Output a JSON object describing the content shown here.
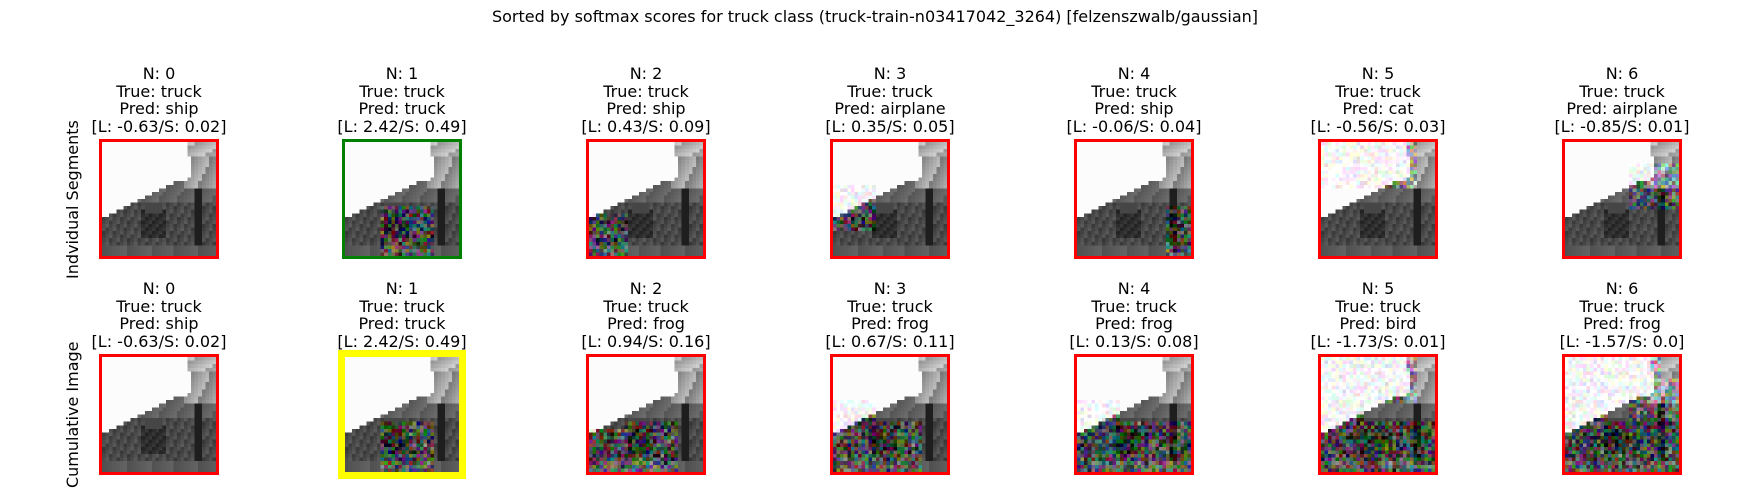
{
  "figure": {
    "suptitle": "Sorted by softmax scores for truck class (truck-train-n03417042_3264) [felzenszwalb/gaussian]",
    "row_labels": {
      "individual": "Indvidual Segments",
      "cumulative": "Cumulative Image"
    },
    "border_colors": {
      "default": "#ff0000",
      "correct": "#008000",
      "best": "#ffff00"
    },
    "rows": [
      {
        "name": "individual-segments",
        "panels": [
          {
            "n": "N: 0",
            "true": "True: truck",
            "pred": "Pred: ship",
            "score": "[L: -0.63/S: 0.02]",
            "border": "default",
            "noise_region": "none"
          },
          {
            "n": "N: 1",
            "true": "True: truck",
            "pred": "Pred: truck",
            "score": "[L: 2.42/S: 0.49]",
            "border": "correct",
            "noise_region": "center-bottom"
          },
          {
            "n": "N: 2",
            "true": "True: truck",
            "pred": "Pred: ship",
            "score": "[L: 0.43/S: 0.09]",
            "border": "default",
            "noise_region": "left-bottom"
          },
          {
            "n": "N: 3",
            "true": "True: truck",
            "pred": "Pred: airplane",
            "score": "[L: 0.35/S: 0.05]",
            "border": "default",
            "noise_region": "left-middle"
          },
          {
            "n": "N: 4",
            "true": "True: truck",
            "pred": "Pred: ship",
            "score": "[L: -0.06/S: 0.04]",
            "border": "default",
            "noise_region": "right-bottom"
          },
          {
            "n": "N: 5",
            "true": "True: truck",
            "pred": "Pred: cat",
            "score": "[L: -0.56/S: 0.03]",
            "border": "default",
            "noise_region": "sky"
          },
          {
            "n": "N: 6",
            "true": "True: truck",
            "pred": "Pred: airplane",
            "score": "[L: -0.85/S: 0.01]",
            "border": "default",
            "noise_region": "right-middle"
          }
        ]
      },
      {
        "name": "cumulative-image",
        "panels": [
          {
            "n": "N: 0",
            "true": "True: truck",
            "pred": "Pred: ship",
            "score": "[L: -0.63/S: 0.02]",
            "border": "default",
            "noise_level": 0
          },
          {
            "n": "N: 1",
            "true": "True: truck",
            "pred": "Pred: truck",
            "score": "[L: 2.42/S: 0.49]",
            "border": "best",
            "noise_level": 1
          },
          {
            "n": "N: 2",
            "true": "True: truck",
            "pred": "Pred: frog",
            "score": "[L: 0.94/S: 0.16]",
            "border": "default",
            "noise_level": 2
          },
          {
            "n": "N: 3",
            "true": "True: truck",
            "pred": "Pred: frog",
            "score": "[L: 0.67/S: 0.11]",
            "border": "default",
            "noise_level": 3
          },
          {
            "n": "N: 4",
            "true": "True: truck",
            "pred": "Pred: frog",
            "score": "[L: 0.13/S: 0.08]",
            "border": "default",
            "noise_level": 4
          },
          {
            "n": "N: 5",
            "true": "True: truck",
            "pred": "Pred: bird",
            "score": "[L: -1.73/S: 0.01]",
            "border": "default",
            "noise_level": 5
          },
          {
            "n": "N: 6",
            "true": "True: truck",
            "pred": "Pred: frog",
            "score": "[L: -1.57/S: 0.0]",
            "border": "default",
            "noise_level": 6
          }
        ]
      }
    ]
  }
}
